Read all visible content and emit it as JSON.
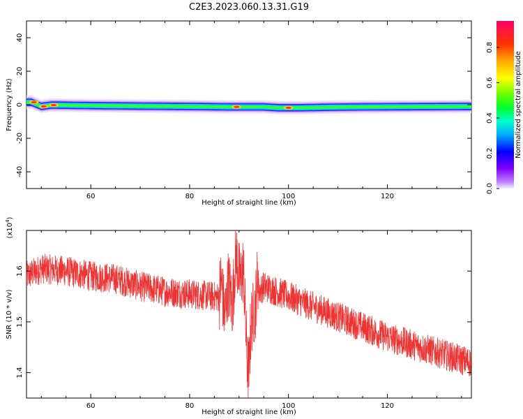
{
  "title": "C2E3.2023.060.13.31.G19",
  "chart_data": [
    {
      "type": "heatmap",
      "xlabel": "Height of straight line (km)",
      "ylabel": "Frequency (Hz)",
      "xlim": [
        47,
        137
      ],
      "ylim": [
        -50,
        50
      ],
      "x_ticks": [
        60,
        80,
        100,
        120
      ],
      "y_ticks": [
        -40,
        -20,
        0,
        20,
        40
      ],
      "colorbar": {
        "label": "Normalized spectral amplitude",
        "range": [
          0.0,
          0.95
        ],
        "ticks": [
          0.0,
          0.2,
          0.4,
          0.6,
          0.8
        ],
        "colormap": "hsv-like (violet low, red high)"
      },
      "ridge": {
        "x": [
          47,
          48,
          49,
          50,
          52,
          55,
          60,
          70,
          80,
          88,
          92,
          95,
          98,
          102,
          110,
          120,
          130,
          136
        ],
        "center_hz": [
          1.5,
          1.5,
          0.3,
          -1.0,
          -0.2,
          -0.3,
          -0.5,
          -0.8,
          -1.0,
          -1.3,
          -1.3,
          -1.3,
          -1.8,
          -1.8,
          -1.4,
          -1.2,
          -1.1,
          -1.0
        ]
      },
      "hotspots": [
        {
          "x": 48.5,
          "freq": 1.5,
          "amplitude": 0.9
        },
        {
          "x": 50.5,
          "freq": -1.0,
          "amplitude": 0.75
        },
        {
          "x": 52.5,
          "freq": -0.2,
          "amplitude": 0.65
        },
        {
          "x": 89.5,
          "freq": -1.3,
          "amplitude": 0.7
        },
        {
          "x": 100,
          "freq": -1.8,
          "amplitude": 0.9
        }
      ]
    },
    {
      "type": "line",
      "xlabel": "Height of straight line (km)",
      "ylabel": "SNR (10 * v/v)",
      "y_multiplier": "(x10^4)",
      "xlim": [
        47,
        137
      ],
      "ylim": [
        1.35,
        1.68
      ],
      "x_ticks": [
        60,
        80,
        100,
        120
      ],
      "y_ticks": [
        1.4,
        1.5,
        1.6
      ],
      "series": [
        {
          "color": "#ee3333",
          "x": [
            47,
            50,
            55,
            60,
            65,
            70,
            75,
            80,
            85,
            88,
            90,
            91,
            92,
            93,
            95,
            100,
            105,
            110,
            115,
            120,
            125,
            130,
            135,
            137
          ],
          "y": [
            1.59,
            1.605,
            1.6,
            1.59,
            1.585,
            1.57,
            1.56,
            1.555,
            1.55,
            1.545,
            1.62,
            1.56,
            1.4,
            1.55,
            1.57,
            1.55,
            1.53,
            1.51,
            1.49,
            1.47,
            1.455,
            1.44,
            1.425,
            1.42
          ]
        }
      ]
    }
  ]
}
